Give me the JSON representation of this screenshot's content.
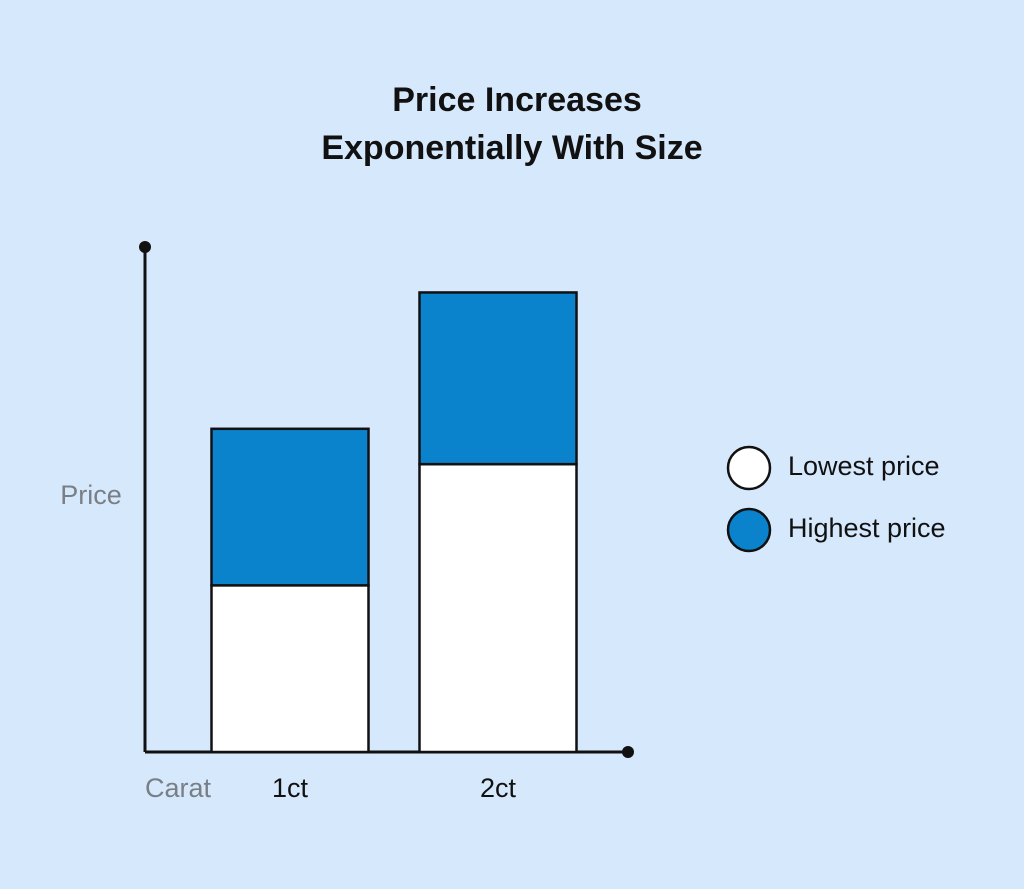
{
  "chart_data": {
    "type": "stacked_bar",
    "title": [
      "Price Increases",
      "Exponentially With Size"
    ],
    "y_label": "Price",
    "x_label": "Carat",
    "categories": [
      "1ct",
      "2ct"
    ],
    "series": [
      {
        "name": "Lowest price",
        "color": "#ffffff",
        "values": [
          33,
          57
        ]
      },
      {
        "name": "Highest price",
        "color": "#0a82cc",
        "values": [
          31,
          34
        ]
      }
    ],
    "ylim": [
      0,
      100
    ],
    "legend": "right"
  }
}
